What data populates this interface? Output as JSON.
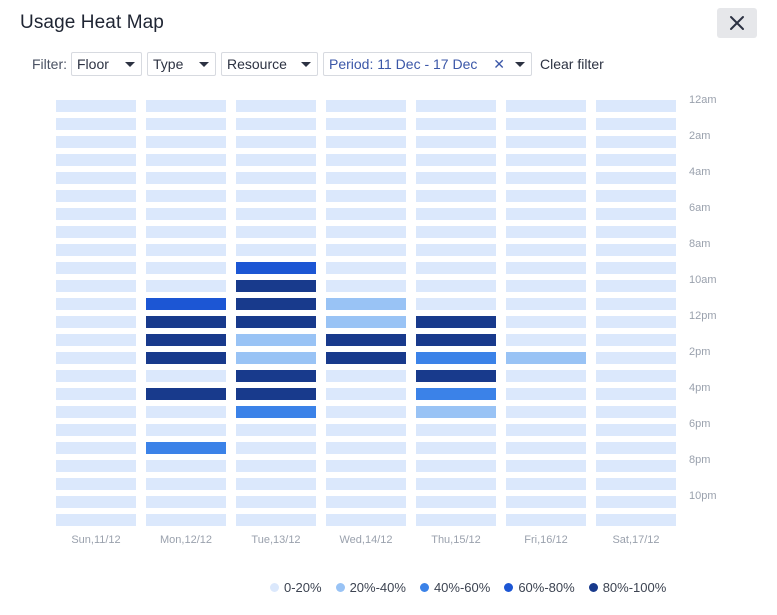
{
  "header": {
    "title": "Usage Heat Map"
  },
  "filters": {
    "label": "Filter:",
    "floor": "Floor",
    "type": "Type",
    "resource": "Resource",
    "period": "Period: 11 Dec - 17 Dec",
    "period_clear": "✕",
    "clear_filter": "Clear filter"
  },
  "colors": {
    "empty": "#dbe8fc",
    "level_1": "#99c3f5",
    "level_2": "#3b82e8",
    "level_3": "#1c56d4",
    "level_4": "#183a8c"
  },
  "hour_labels": [
    "12am",
    "2am",
    "4am",
    "6am",
    "8am",
    "10am",
    "12pm",
    "2pm",
    "4pm",
    "6pm",
    "8pm",
    "10pm"
  ],
  "day_labels": [
    "Sun,11/12",
    "Mon,12/12",
    "Tue,13/12",
    "Wed,14/12",
    "Thu,15/12",
    "Fri,16/12",
    "Sat,17/12"
  ],
  "legend": [
    {
      "label": "0-20%",
      "color": "#dbe8fc"
    },
    {
      "label": "20%-40%",
      "color": "#99c3f5"
    },
    {
      "label": "40%-60%",
      "color": "#3b82e8"
    },
    {
      "label": "60%-80%",
      "color": "#1c56d4"
    },
    {
      "label": "80%-100%",
      "color": "#183a8c"
    }
  ],
  "chart_data": {
    "type": "heatmap",
    "x": [
      "Sun,11/12",
      "Mon,12/12",
      "Tue,13/12",
      "Wed,14/12",
      "Thu,15/12",
      "Fri,16/12",
      "Sat,17/12"
    ],
    "y_ticks": [
      "12am",
      "2am",
      "4am",
      "6am",
      "8am",
      "10am",
      "12pm",
      "2pm",
      "4pm",
      "6pm",
      "8pm",
      "10pm"
    ],
    "slots_per_day": 24,
    "levels": [
      "0-20%",
      "20%-40%",
      "40%-60%",
      "60%-80%",
      "80%-100%"
    ],
    "values": [
      [
        0,
        0,
        0,
        0,
        0,
        0,
        0,
        0,
        0,
        0,
        0,
        0,
        0,
        0,
        0,
        0,
        0,
        0,
        0,
        0,
        0,
        0,
        0,
        0
      ],
      [
        0,
        0,
        0,
        0,
        0,
        0,
        0,
        0,
        0,
        0,
        0,
        3,
        4,
        4,
        4,
        0,
        4,
        0,
        0,
        2,
        0,
        0,
        0,
        0
      ],
      [
        0,
        0,
        0,
        0,
        0,
        0,
        0,
        0,
        0,
        3,
        4,
        4,
        4,
        1,
        1,
        4,
        4,
        2,
        0,
        0,
        0,
        0,
        0,
        0
      ],
      [
        0,
        0,
        0,
        0,
        0,
        0,
        0,
        0,
        0,
        0,
        0,
        1,
        1,
        4,
        4,
        0,
        0,
        0,
        0,
        0,
        0,
        0,
        0,
        0
      ],
      [
        0,
        0,
        0,
        0,
        0,
        0,
        0,
        0,
        0,
        0,
        0,
        0,
        4,
        4,
        2,
        4,
        2,
        1,
        0,
        0,
        0,
        0,
        0,
        0
      ],
      [
        0,
        0,
        0,
        0,
        0,
        0,
        0,
        0,
        0,
        0,
        0,
        0,
        0,
        0,
        1,
        0,
        0,
        0,
        0,
        0,
        0,
        0,
        0,
        0
      ],
      [
        0,
        0,
        0,
        0,
        0,
        0,
        0,
        0,
        0,
        0,
        0,
        0,
        0,
        0,
        0,
        0,
        0,
        0,
        0,
        0,
        0,
        0,
        0,
        0
      ]
    ]
  }
}
